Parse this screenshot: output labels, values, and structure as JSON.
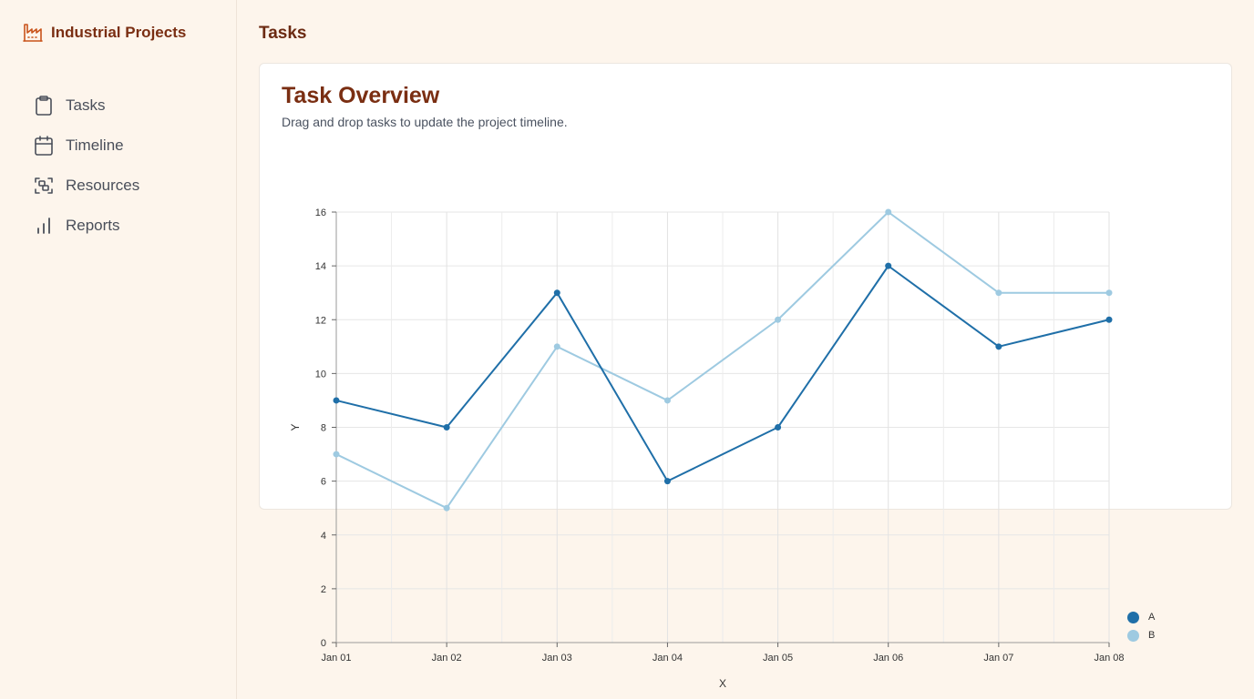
{
  "app": {
    "brand_name": "Industrial Projects",
    "brand_icon": "factory-icon",
    "accent_color": "#c9531a",
    "brand_text_color": "#7a2e12"
  },
  "sidebar": {
    "items": [
      {
        "label": "Tasks",
        "icon": "clipboard-icon"
      },
      {
        "label": "Timeline",
        "icon": "calendar-icon"
      },
      {
        "label": "Resources",
        "icon": "resources-icon"
      },
      {
        "label": "Reports",
        "icon": "bar-chart-icon"
      }
    ]
  },
  "header": {
    "title": "Tasks"
  },
  "card": {
    "title": "Task Overview",
    "subtitle": "Drag and drop tasks to update the project timeline."
  },
  "chart_data": {
    "type": "line",
    "categories": [
      "Jan 01",
      "Jan 02",
      "Jan 03",
      "Jan 04",
      "Jan 05",
      "Jan 06",
      "Jan 07",
      "Jan 08"
    ],
    "series": [
      {
        "name": "A",
        "color": "#1f6fa8",
        "values": [
          9,
          8,
          13,
          6,
          8,
          14,
          11,
          12
        ]
      },
      {
        "name": "B",
        "color": "#9ecae1",
        "values": [
          7,
          5,
          11,
          9,
          12,
          16,
          13,
          13
        ]
      }
    ],
    "xlabel": "X",
    "ylabel": "Y",
    "ylim": [
      0,
      16
    ],
    "yticks": [
      0,
      2,
      4,
      6,
      8,
      10,
      12,
      14,
      16
    ],
    "grid": true,
    "legend_position": "bottom-right"
  }
}
